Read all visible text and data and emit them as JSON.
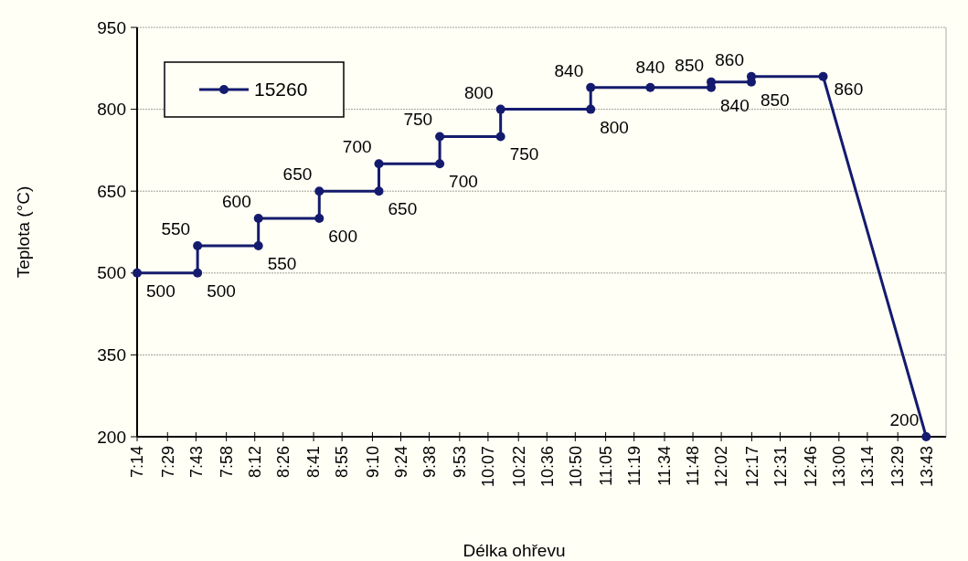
{
  "chart_data": {
    "type": "line",
    "xlabel": "Délka ohřevu",
    "ylabel": "Teplota (°C)",
    "xlim": [
      7.2333,
      13.88
    ],
    "ylim": [
      200,
      950
    ],
    "yticks": [
      200,
      350,
      500,
      650,
      800,
      950
    ],
    "xticks": [
      {
        "value": 7.2333,
        "label": "7:14"
      },
      {
        "value": 7.4833,
        "label": "7:29"
      },
      {
        "value": 7.7167,
        "label": "7:43"
      },
      {
        "value": 7.9667,
        "label": "7:58"
      },
      {
        "value": 8.2,
        "label": "8:12"
      },
      {
        "value": 8.4333,
        "label": "8:26"
      },
      {
        "value": 8.6833,
        "label": "8:41"
      },
      {
        "value": 8.9167,
        "label": "8:55"
      },
      {
        "value": 9.1667,
        "label": "9:10"
      },
      {
        "value": 9.4,
        "label": "9:24"
      },
      {
        "value": 9.6333,
        "label": "9:38"
      },
      {
        "value": 9.8833,
        "label": "9:53"
      },
      {
        "value": 10.1167,
        "label": "10:07"
      },
      {
        "value": 10.3667,
        "label": "10:22"
      },
      {
        "value": 10.6,
        "label": "10:36"
      },
      {
        "value": 10.8333,
        "label": "10:50"
      },
      {
        "value": 11.0833,
        "label": "11:05"
      },
      {
        "value": 11.3167,
        "label": "11:19"
      },
      {
        "value": 11.5667,
        "label": "11:34"
      },
      {
        "value": 11.8,
        "label": "11:48"
      },
      {
        "value": 12.0333,
        "label": "12:02"
      },
      {
        "value": 12.2833,
        "label": "12:17"
      },
      {
        "value": 12.5167,
        "label": "12:31"
      },
      {
        "value": 12.7667,
        "label": "12:46"
      },
      {
        "value": 13,
        "label": "13:00"
      },
      {
        "value": 13.2333,
        "label": "13:14"
      },
      {
        "value": 13.4833,
        "label": "13:29"
      },
      {
        "value": 13.7167,
        "label": "13:43"
      }
    ],
    "grid": "y",
    "legend": "top left",
    "marker": "circle",
    "line_style": "solid",
    "data_labels": true,
    "series": [
      {
        "name": "15260",
        "color": "#141b6e",
        "x": [
          7.2333,
          7.73,
          7.73,
          8.23,
          8.23,
          8.73,
          8.73,
          9.22,
          9.22,
          9.72,
          9.72,
          10.22,
          10.22,
          10.96,
          10.96,
          11.45,
          11.95,
          11.95,
          12.28,
          12.28,
          12.87,
          13.7167
        ],
        "values": [
          500,
          500,
          550,
          550,
          600,
          600,
          650,
          650,
          700,
          700,
          750,
          750,
          800,
          800,
          840,
          840,
          840,
          850,
          850,
          860,
          860,
          200
        ]
      }
    ]
  }
}
